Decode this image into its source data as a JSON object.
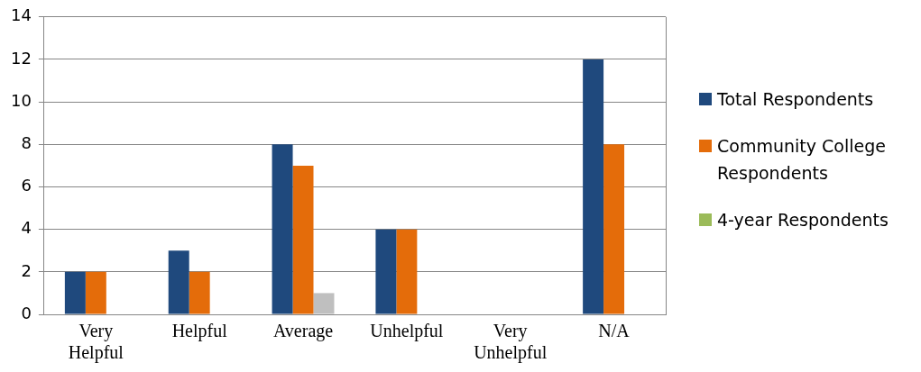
{
  "chart_data": {
    "type": "bar",
    "categories": [
      "Very Helpful",
      "Helpful",
      "Average",
      "Unhelpful",
      "Very Unhelpful",
      "N/A"
    ],
    "series": [
      {
        "name": "Total Respondents",
        "color": "#1f497d",
        "values": [
          2,
          3,
          8,
          4,
          0,
          12
        ]
      },
      {
        "name": "Community College Respondents",
        "color": "#e46c0a",
        "values": [
          2,
          2,
          7,
          4,
          0,
          8
        ]
      },
      {
        "name": "4-year Respondents",
        "color": "#9bbb59",
        "colors": [
          "#9bbb59",
          "#9bbb59",
          "#bfbfbf",
          "#9bbb59",
          "#9bbb59",
          "#9bbb59"
        ],
        "values": [
          0,
          0,
          1,
          0,
          0,
          0
        ]
      }
    ],
    "ylim": [
      0,
      14
    ],
    "yticks": [
      0,
      2,
      4,
      6,
      8,
      10,
      12,
      14
    ],
    "grid": "y",
    "legend": "right"
  }
}
